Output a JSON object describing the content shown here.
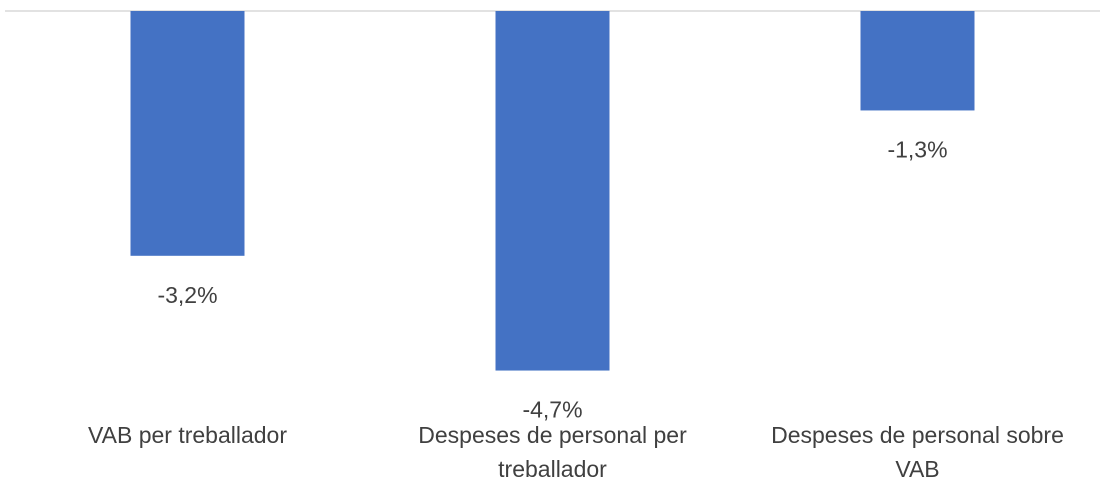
{
  "chart_data": {
    "type": "bar",
    "categories": [
      [
        "VAB per treballador"
      ],
      [
        "Despeses de personal per",
        "treballador"
      ],
      [
        "Despeses de personal sobre",
        "VAB"
      ]
    ],
    "values": [
      -3.2,
      -4.7,
      -1.3
    ],
    "data_labels": [
      "-3,2%",
      "-4,7%",
      "-1,3%"
    ],
    "title": "",
    "xlabel": "",
    "ylabel": "",
    "ylim": [
      -5.0,
      0
    ],
    "grid": false,
    "legend": "none",
    "colors": {
      "bar": "#4472C4",
      "axis_line": "#D9D9D9",
      "text": "#404040"
    }
  }
}
